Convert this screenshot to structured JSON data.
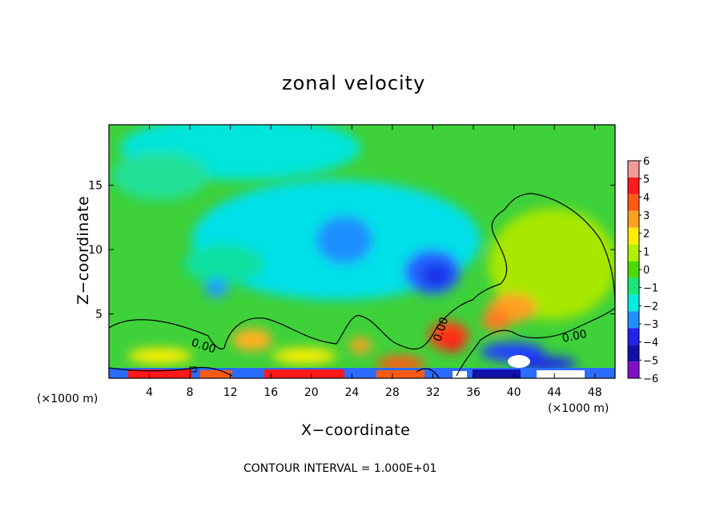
{
  "chart_data": {
    "type": "heatmap",
    "title": "zonal velocity",
    "xlabel": "X−coordinate",
    "ylabel": "Z−coordinate",
    "x_unit_left": "(×1000 m)",
    "x_unit_right": "(×1000 m)",
    "footer": "CONTOUR INTERVAL = 1.000E+01",
    "xlim": [
      0,
      50
    ],
    "ylim": [
      0,
      19.7
    ],
    "x_ticks": [
      4,
      8,
      12,
      16,
      20,
      24,
      28,
      32,
      36,
      40,
      44,
      48
    ],
    "y_ticks": [
      5,
      10,
      15
    ],
    "contour_label": "0.00",
    "colorbar": {
      "ticks": [
        "6",
        "5",
        "4",
        "3",
        "2",
        "1",
        "0",
        "−1",
        "−2",
        "−3",
        "−4",
        "−5",
        "−6"
      ],
      "levels": [
        6,
        5,
        4,
        3,
        2,
        1,
        0,
        -1,
        -2,
        -3,
        -4,
        -5,
        -6
      ],
      "colors": [
        "#f29a9a",
        "#ff1a1a",
        "#ff5a14",
        "#ffa020",
        "#ffee00",
        "#b4ee00",
        "#4bdc00",
        "#18e878",
        "#00eee0",
        "#1f8fff",
        "#2222ee",
        "#1010aa",
        "#8010c8"
      ]
    },
    "features": [
      {
        "kind": "min",
        "x": 24.5,
        "z": 10.5,
        "value": -3
      },
      {
        "kind": "min",
        "x": 33.5,
        "z": 8.2,
        "value": -3.5
      },
      {
        "kind": "min",
        "x": 9.5,
        "z": 6.5,
        "value": -1.5
      },
      {
        "kind": "max",
        "x": 39.5,
        "z": 5.8,
        "value": 3
      },
      {
        "kind": "max",
        "x": 44,
        "z": 10.5,
        "value": 1.3
      },
      {
        "kind": "max",
        "x": 33.5,
        "z": 2.8,
        "value": 4
      }
    ]
  }
}
